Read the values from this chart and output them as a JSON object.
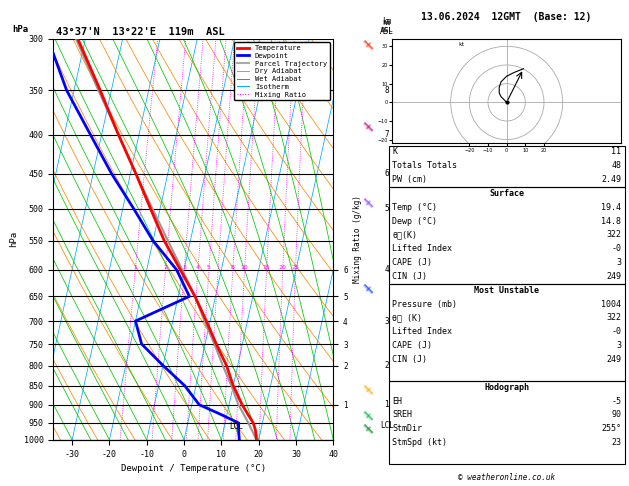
{
  "title_left": "43°37'N  13°22'E  119m  ASL",
  "title_right": "13.06.2024  12GMT  (Base: 12)",
  "xlabel": "Dewpoint / Temperature (°C)",
  "ylabel_left": "hPa",
  "ylabel_mr": "Mixing Ratio (g/kg)",
  "ylabel_km": "km\nASL",
  "isotherm_color": "#00aaff",
  "dry_adiabat_color": "#ff8800",
  "wet_adiabat_color": "#00cc00",
  "mixing_ratio_color": "#ff00ff",
  "temp_color": "#ff0000",
  "dewp_color": "#0000ff",
  "parcel_color": "#999999",
  "footer": "© weatheronline.co.uk",
  "legend_items": [
    {
      "label": "Temperature",
      "color": "#ff0000",
      "lw": 2.0,
      "ls": "solid"
    },
    {
      "label": "Dewpoint",
      "color": "#0000ff",
      "lw": 2.0,
      "ls": "solid"
    },
    {
      "label": "Parcel Trajectory",
      "color": "#aaaaaa",
      "lw": 1.5,
      "ls": "solid"
    },
    {
      "label": "Dry Adiabat",
      "color": "#ff8800",
      "lw": 0.7,
      "ls": "solid"
    },
    {
      "label": "Wet Adiabat",
      "color": "#00cc00",
      "lw": 0.7,
      "ls": "solid"
    },
    {
      "label": "Isotherm",
      "color": "#00aaff",
      "lw": 0.7,
      "ls": "solid"
    },
    {
      "label": "Mixing Ratio",
      "color": "#ff00ff",
      "lw": 0.7,
      "ls": "dotted"
    }
  ],
  "sounding_p": [
    1000,
    970,
    950,
    925,
    900,
    850,
    800,
    750,
    700,
    650,
    600,
    550,
    500,
    450,
    400,
    350,
    300
  ],
  "sounding_t": [
    19.4,
    18.5,
    17.5,
    15.5,
    13.5,
    10.0,
    7.0,
    3.0,
    -1.0,
    -5.5,
    -11.0,
    -17.0,
    -22.5,
    -28.5,
    -35.5,
    -43.0,
    -52.0
  ],
  "sounding_td": [
    14.8,
    14.0,
    13.5,
    8.0,
    2.0,
    -3.0,
    -10.0,
    -17.0,
    -20.0,
    -7.0,
    -12.0,
    -20.0,
    -27.0,
    -35.0,
    -43.0,
    -52.0,
    -60.0
  ],
  "parcel_p": [
    1000,
    970,
    950,
    900,
    850,
    800,
    750,
    700,
    650,
    600,
    550,
    500,
    450,
    400,
    350,
    300
  ],
  "parcel_t": [
    19.4,
    17.5,
    16.2,
    12.5,
    9.5,
    6.0,
    2.5,
    -1.5,
    -5.5,
    -10.5,
    -16.0,
    -22.0,
    -28.5,
    -35.5,
    -43.5,
    -52.5
  ],
  "p_min": 300,
  "p_max": 1000,
  "T_min": -35,
  "T_max": 40,
  "skew": 45.0,
  "Rd_cp": 0.2854,
  "lcl_p": 960,
  "km_ticks": {
    "350": "8",
    "400": "7",
    "450": "6",
    "500": "5",
    "600": "4",
    "700": "3",
    "800": "2",
    "900": "1",
    "950": "LCL"
  },
  "mr_tick_p": [
    600,
    650,
    700,
    750,
    800,
    900
  ],
  "mr_tick_lbl": [
    "6",
    "5",
    "4",
    "3",
    "2",
    "1"
  ],
  "mr_label_vals": [
    1,
    2,
    3,
    4,
    5,
    8,
    10,
    15,
    20,
    25
  ],
  "wind_barbs": [
    {
      "p": 305,
      "color": "#ff2200"
    },
    {
      "p": 390,
      "color": "#cc0088"
    },
    {
      "p": 490,
      "color": "#8844ff"
    },
    {
      "p": 635,
      "color": "#0044ff"
    },
    {
      "p": 860,
      "color": "#ffaa00"
    },
    {
      "p": 930,
      "color": "#00bb44"
    },
    {
      "p": 968,
      "color": "#008822"
    }
  ]
}
